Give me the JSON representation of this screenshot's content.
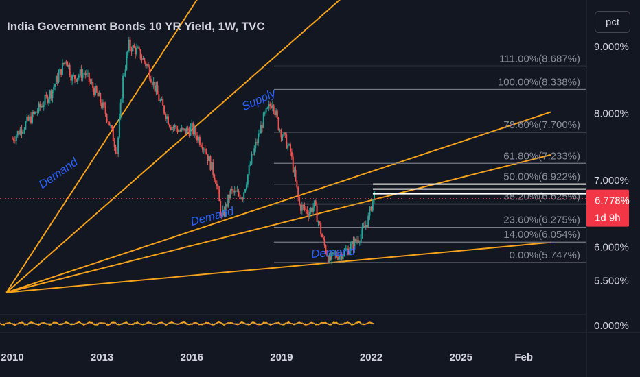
{
  "header": {
    "title": "India Government Bonds 10 YR Yield, 1W, TVC"
  },
  "scale_button": {
    "label": "pct"
  },
  "price_axis": {
    "ticks": [
      {
        "label": "9.000%",
        "value": 9.0
      },
      {
        "label": "8.000%",
        "value": 8.0
      },
      {
        "label": "7.000%",
        "value": 7.0
      },
      {
        "label": "6.000%",
        "value": 6.0
      },
      {
        "label": "5.500%",
        "value": 5.5
      }
    ],
    "indicator_tick": {
      "label": "0.000%",
      "value": 0.0
    }
  },
  "last_price": {
    "label": "6.778%",
    "countdown": "1d 9h",
    "value": 6.778,
    "color": "#f23645"
  },
  "chart_data": {
    "type": "candlestick",
    "symbol": "India Government Bonds 10 YR Yield",
    "interval": "1W",
    "source": "TVC",
    "x_ticks": [
      {
        "label": "2010",
        "year": 2010.0
      },
      {
        "label": "2013",
        "year": 2013.0
      },
      {
        "label": "2016",
        "year": 2016.0
      },
      {
        "label": "2019",
        "year": 2019.0
      },
      {
        "label": "2022",
        "year": 2022.0
      },
      {
        "label": "2025",
        "year": 2025.0
      },
      {
        "label": "Feb",
        "year": 2027.1
      }
    ],
    "xlim": [
      2010.0,
      2027.8
    ],
    "ylim": [
      5.3,
      9.25
    ],
    "price_path": [
      [
        2010.0,
        7.6
      ],
      [
        2010.4,
        7.8
      ],
      [
        2010.8,
        8.0
      ],
      [
        2011.3,
        8.3
      ],
      [
        2011.8,
        8.8
      ],
      [
        2012.0,
        8.5
      ],
      [
        2012.4,
        8.6
      ],
      [
        2012.9,
        8.2
      ],
      [
        2013.2,
        7.9
      ],
      [
        2013.5,
        7.4
      ],
      [
        2013.7,
        8.5
      ],
      [
        2013.9,
        9.0
      ],
      [
        2014.2,
        8.9
      ],
      [
        2014.5,
        8.7
      ],
      [
        2014.9,
        8.2
      ],
      [
        2015.3,
        7.8
      ],
      [
        2015.7,
        7.7
      ],
      [
        2016.0,
        7.75
      ],
      [
        2016.4,
        7.5
      ],
      [
        2016.8,
        7.0
      ],
      [
        2017.0,
        6.4
      ],
      [
        2017.3,
        6.8
      ],
      [
        2017.7,
        6.75
      ],
      [
        2018.0,
        7.3
      ],
      [
        2018.4,
        7.9
      ],
      [
        2018.7,
        8.17
      ],
      [
        2018.9,
        7.8
      ],
      [
        2019.3,
        7.4
      ],
      [
        2019.6,
        6.6
      ],
      [
        2019.9,
        6.5
      ],
      [
        2020.1,
        6.6
      ],
      [
        2020.4,
        6.05
      ],
      [
        2020.6,
        5.78
      ],
      [
        2020.8,
        5.85
      ],
      [
        2021.1,
        5.9
      ],
      [
        2021.4,
        6.02
      ],
      [
        2021.7,
        6.2
      ],
      [
        2021.9,
        6.4
      ],
      [
        2022.0,
        6.6
      ],
      [
        2022.1,
        6.778
      ]
    ],
    "fib_levels": [
      {
        "label": "111.00%(8.687%)",
        "value": 8.687
      },
      {
        "label": "100.00%(8.338%)",
        "value": 8.338
      },
      {
        "label": "78.60%(7.700%)",
        "value": 7.7
      },
      {
        "label": "61.80%(7.233%)",
        "value": 7.233
      },
      {
        "label": "50.00%(6.922%)",
        "value": 6.922
      },
      {
        "label": "38.20%(6.625%)",
        "value": 6.625
      },
      {
        "label": "23.60%(6.275%)",
        "value": 6.275
      },
      {
        "label": "14.00%(6.054%)",
        "value": 6.054
      },
      {
        "label": "0.00%(5.747%)",
        "value": 5.747
      }
    ],
    "fib_start_year": 2019.0,
    "fan_lines": [
      {
        "p1": [
          2009.8,
          5.3
        ],
        "p2": [
          2016.2,
          9.7
        ]
      },
      {
        "p1": [
          2009.8,
          5.3
        ],
        "p2": [
          2021.0,
          9.7
        ]
      },
      {
        "p1": [
          2009.8,
          5.3
        ],
        "p2": [
          2028.0,
          8.0
        ]
      },
      {
        "p1": [
          2009.8,
          5.3
        ],
        "p2": [
          2028.0,
          7.36
        ]
      },
      {
        "p1": [
          2009.8,
          5.3
        ],
        "p2": [
          2028.0,
          6.05
        ]
      }
    ],
    "fan_color": "#f7a21b",
    "annotations": [
      {
        "text": "Supply",
        "year": 2017.75,
        "value": 8.02,
        "rotate": -25
      },
      {
        "text": "Demand",
        "year": 2011.0,
        "value": 6.85,
        "rotate": -35
      },
      {
        "text": "Demand",
        "year": 2016.0,
        "value": 6.3,
        "rotate": -15
      },
      {
        "text": "Demand",
        "year": 2020.0,
        "value": 5.82,
        "rotate": -4
      }
    ],
    "annotation_color": "#2962ff",
    "recent_hlines": [
      6.778,
      6.85,
      6.922
    ],
    "up_color": "#26a69a",
    "down_color": "#ef5350",
    "indicator_color": "#f7a21b"
  }
}
